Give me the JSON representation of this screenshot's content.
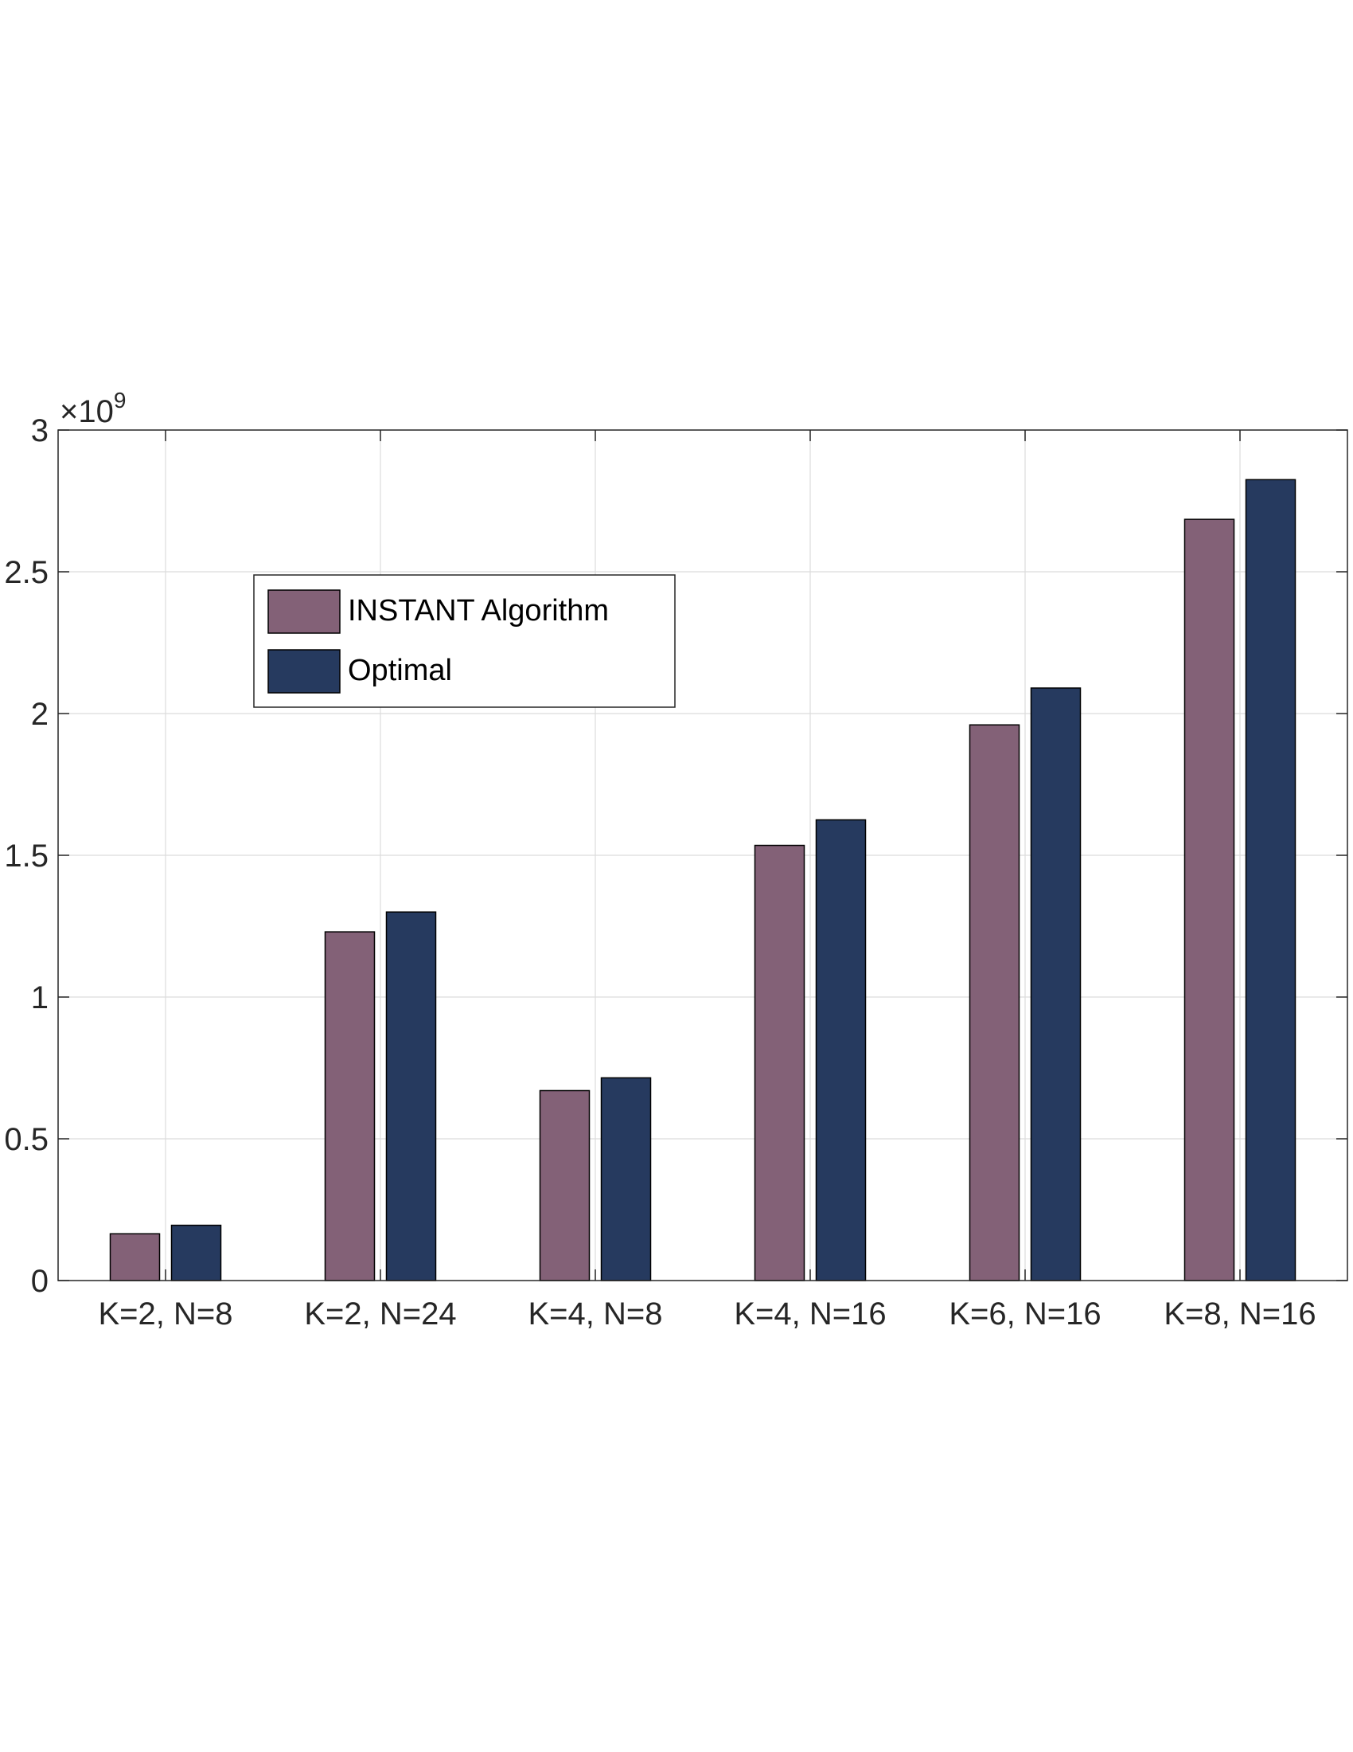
{
  "chart_data": {
    "type": "bar",
    "categories": [
      "K=2, N=8",
      "K=2, N=24",
      "K=4, N=8",
      "K=4, N=16",
      "K=6, N=16",
      "K=8, N=16"
    ],
    "series": [
      {
        "name": "INSTANT Algorithm",
        "color": "#836177",
        "values": [
          0.165,
          1.23,
          0.67,
          1.535,
          1.96,
          2.685
        ]
      },
      {
        "name": "Optimal",
        "color": "#263a5f",
        "values": [
          0.195,
          1.3,
          0.715,
          1.625,
          2.09,
          2.825
        ]
      }
    ],
    "y_multiplier_base": "×10",
    "y_multiplier_exponent": "9",
    "yticks": [
      0,
      0.5,
      1,
      1.5,
      2,
      2.5,
      3
    ],
    "ytick_labels": [
      "0",
      "0.5",
      "1",
      "1.5",
      "2",
      "2.5",
      "3"
    ],
    "ylim": [
      0,
      3
    ],
    "grid": true,
    "legend_position": "top-left",
    "title": "",
    "xlabel": "",
    "ylabel": ""
  }
}
